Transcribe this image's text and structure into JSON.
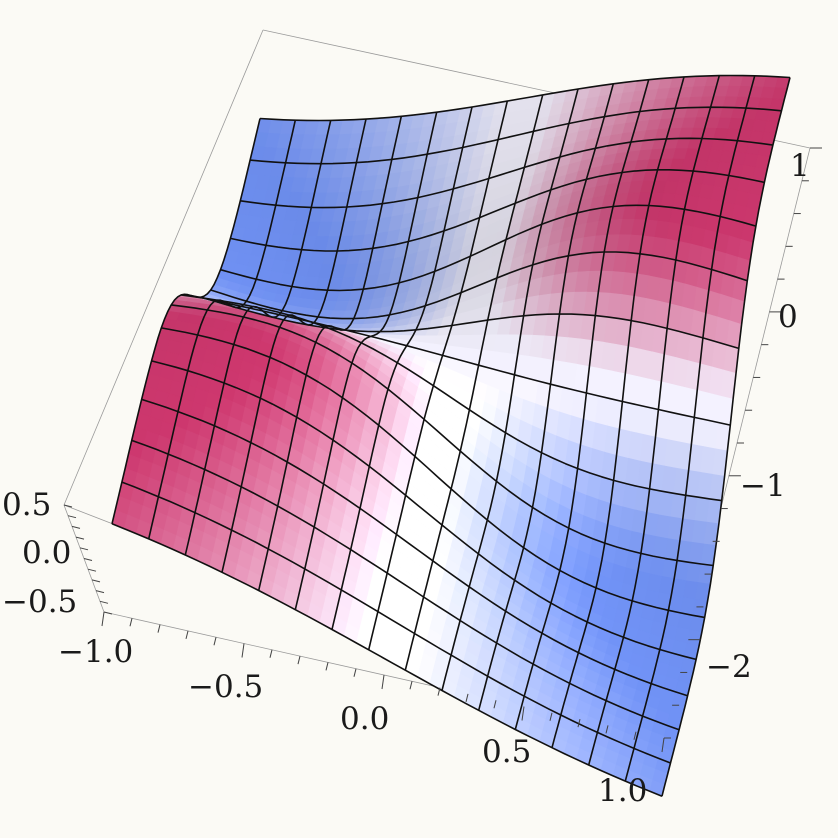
{
  "chart_data": {
    "type": "surface3d",
    "title": "",
    "xlabel": "",
    "ylabel": "",
    "zlabel": "",
    "x_range": [
      -1,
      1
    ],
    "y_range": [
      -2.5,
      1.2
    ],
    "z_range": [
      -0.7,
      0.6
    ],
    "x_ticks": [
      "−1.0",
      "−0.5",
      "0.0",
      "0.5",
      "1.0"
    ],
    "y_ticks": [
      "1",
      "0",
      "−1",
      "−2"
    ],
    "z_ticks": [
      "0.5",
      "0.0",
      "−0.5"
    ],
    "mesh_lines": 15,
    "surface": "z = 0.55·sin(2·atan2(y+0.5, x))·(1 − e^(−r²/0.35)), r² = x² + (y+0.5)² — saddle with a branch-cut fold through the center",
    "colors": {
      "high": "#c8366b",
      "mid_low": "#6e8ff0",
      "low": "#3f74e8",
      "light": "#f4f2ff",
      "mesh": "#111111",
      "background": "#fbfaf5"
    }
  }
}
